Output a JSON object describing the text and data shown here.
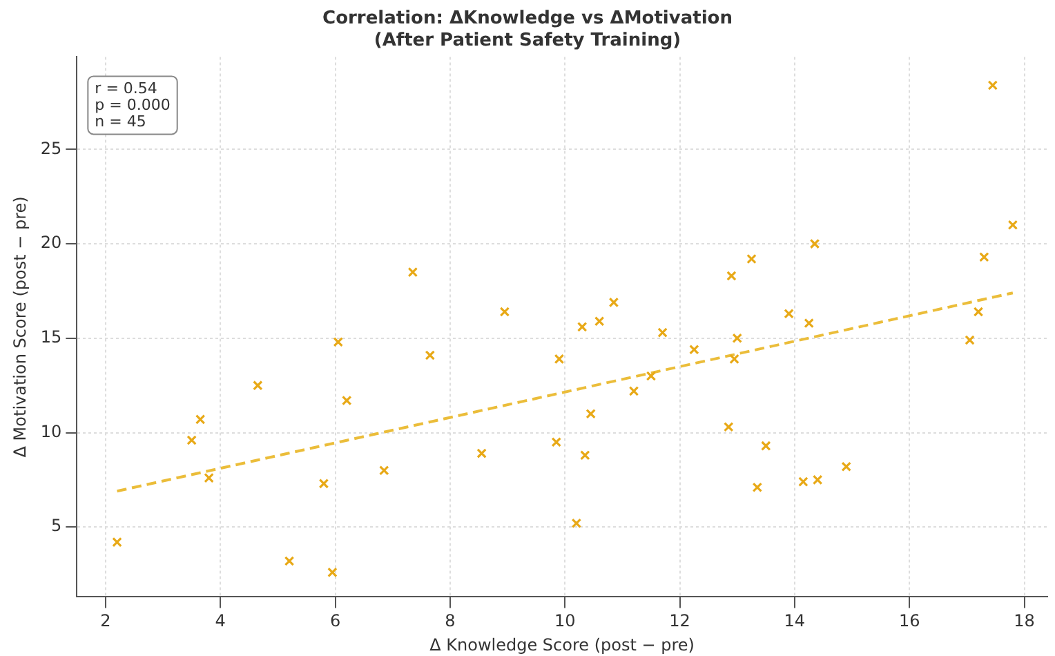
{
  "chart_data": {
    "type": "scatter",
    "title": "Correlation: ΔKnowledge vs ΔMotivation\n(After Patient Safety Training)",
    "xlabel": "Δ Knowledge Score (post − pre)",
    "ylabel": "Δ Motivation Score (post − pre)",
    "annotations": [
      "r = 0.54\np = 0.000\nn = 45"
    ],
    "series": [
      {
        "color": "#e8a917",
        "marker": "cross",
        "x": [
          2.2,
          3.5,
          3.65,
          3.8,
          4.65,
          5.2,
          5.8,
          5.95,
          6.05,
          6.2,
          6.85,
          7.35,
          7.65,
          8.55,
          8.95,
          9.85,
          9.9,
          10.2,
          10.3,
          10.35,
          10.45,
          10.6,
          10.85,
          11.2,
          11.5,
          11.7,
          12.25,
          12.85,
          12.9,
          12.95,
          13.0,
          13.25,
          13.35,
          13.5,
          13.9,
          14.15,
          14.25,
          14.35,
          14.4,
          14.9,
          17.05,
          17.2,
          17.3,
          17.45,
          17.8
        ],
        "values": [
          4.2,
          9.6,
          10.7,
          7.6,
          12.5,
          3.2,
          7.3,
          2.6,
          14.8,
          11.7,
          8.0,
          18.5,
          14.1,
          8.9,
          16.4,
          9.5,
          13.9,
          5.2,
          15.6,
          8.8,
          11.0,
          15.9,
          16.9,
          12.2,
          13.0,
          15.3,
          14.4,
          10.3,
          18.3,
          13.9,
          15.0,
          19.2,
          7.1,
          9.3,
          16.3,
          7.4,
          15.8,
          20.0,
          7.5,
          8.2,
          14.9,
          16.4,
          19.3,
          28.4,
          21.0
        ]
      },
      {
        "type": "line",
        "color": "#ebbd3a",
        "line_style": "dashed",
        "marker": "none",
        "x": [
          2.2,
          17.8
        ],
        "values": [
          6.9,
          17.4
        ]
      }
    ],
    "xlim": [
      1.5,
      18.4
    ],
    "xticks": [
      2,
      4,
      6,
      8,
      10,
      12,
      14,
      16,
      18
    ],
    "ylim": [
      1.3,
      29.9
    ],
    "yticks": [
      5,
      10,
      15,
      20,
      25
    ],
    "grid": true,
    "legend": false
  }
}
